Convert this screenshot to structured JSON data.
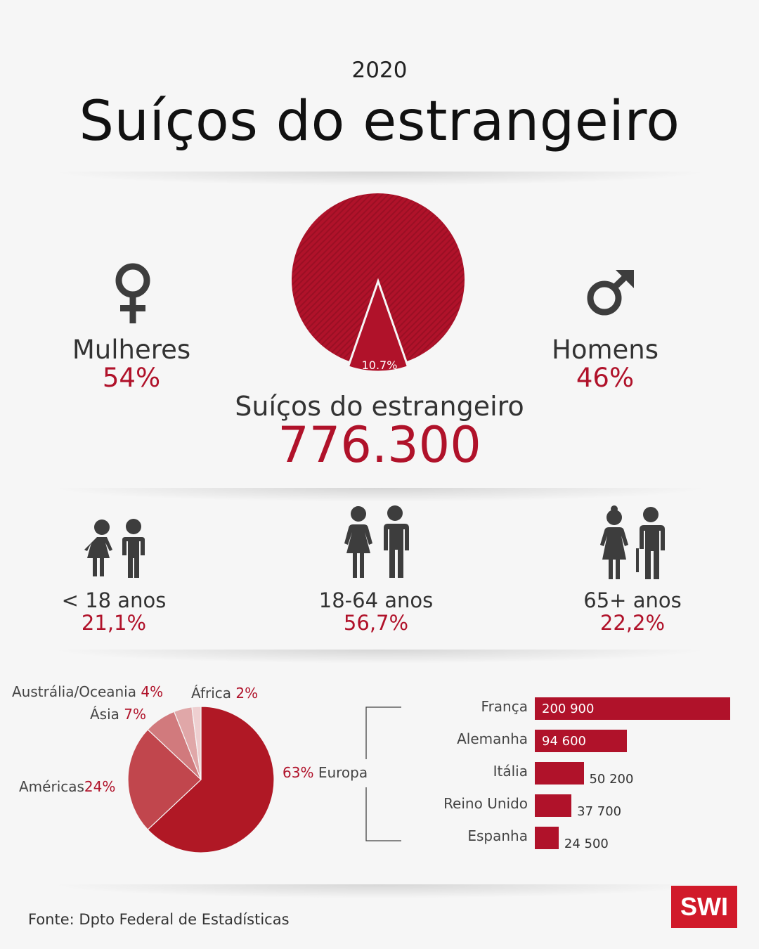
{
  "header": {
    "year": "2020",
    "title": "Suíços do estrangeiro"
  },
  "gender": {
    "women_label": "Mulheres",
    "women_value": "54%",
    "men_label": "Homens",
    "men_value": "46%"
  },
  "main_stat": {
    "share_label": "10.7%",
    "label": "Suíços do estrangeiro",
    "value": "776.300"
  },
  "ages": [
    {
      "label": "< 18 anos",
      "value": "21,1%"
    },
    {
      "label": "18-64 anos",
      "value": "56,7%"
    },
    {
      "label": "65+ anos",
      "value": "22,2%"
    }
  ],
  "source": "Fonte: Dpto Federal de Estadísticas",
  "logo": "SWI",
  "colors": {
    "accent": "#b0122a",
    "dark_icon": "#3d3d3d",
    "logo_red": "#d11a2a"
  },
  "chart_data": [
    {
      "type": "pie",
      "slices": [
        {
          "label": "Suíços do estrangeiro",
          "value": 10.7,
          "display": "10.7%"
        }
      ]
    },
    {
      "type": "pie",
      "slices": [
        {
          "label": "Europa",
          "value": 63,
          "display": "63%",
          "color": "#b01825"
        },
        {
          "label": "Américas",
          "value": 24,
          "display": "24%",
          "color": "#c1464d"
        },
        {
          "label": "Ásia",
          "value": 7,
          "display": "7%",
          "color": "#d17a7d"
        },
        {
          "label": "Austrália/Oceania",
          "value": 4,
          "display": "4%",
          "color": "#e0a7a8"
        },
        {
          "label": "África",
          "value": 2,
          "display": "2%",
          "color": "#eecfd0"
        }
      ]
    },
    {
      "type": "bar",
      "orientation": "horizontal",
      "categories": [
        "França",
        "Alemanha",
        "Itália",
        "Reino Unido",
        "Espanha"
      ],
      "values": [
        200900,
        94600,
        50200,
        37700,
        24500
      ],
      "value_labels": [
        "200 900",
        "94 600",
        "50 200",
        "37 700",
        "24 500"
      ]
    }
  ]
}
